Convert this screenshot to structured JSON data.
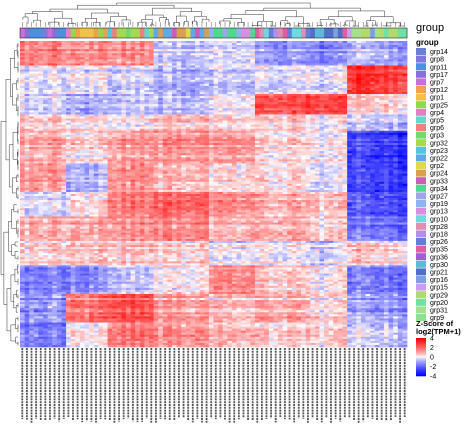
{
  "chart_data": {
    "type": "heatmap",
    "annotation_row_label": "group",
    "legend": {
      "group": {
        "title": "group",
        "entries": [
          {
            "label": "grp14",
            "color": "#6b7cd9"
          },
          {
            "label": "grp8",
            "color": "#7f78e0"
          },
          {
            "label": "grp11",
            "color": "#4f8fe0"
          },
          {
            "label": "grp17",
            "color": "#8a6fdc"
          },
          {
            "label": "grp7",
            "color": "#c96fd9"
          },
          {
            "label": "grp12",
            "color": "#f2a04a"
          },
          {
            "label": "grp1",
            "color": "#f0c24a"
          },
          {
            "label": "grp25",
            "color": "#8fd94e"
          },
          {
            "label": "grp4",
            "color": "#e37fc7"
          },
          {
            "label": "grp5",
            "color": "#5fd9c9"
          },
          {
            "label": "grp6",
            "color": "#f07f7f"
          },
          {
            "label": "grp3",
            "color": "#73d96b"
          },
          {
            "label": "grp32",
            "color": "#a6d94e"
          },
          {
            "label": "grp23",
            "color": "#4fc7e0"
          },
          {
            "label": "grp22",
            "color": "#5fa9e6"
          },
          {
            "label": "grp2",
            "color": "#e0d94f"
          },
          {
            "label": "grp24",
            "color": "#d9a14f"
          },
          {
            "label": "grp33",
            "color": "#c95fb9"
          },
          {
            "label": "grp34",
            "color": "#4fd98f"
          },
          {
            "label": "grp27",
            "color": "#9fa6e8"
          },
          {
            "label": "grp19",
            "color": "#8fb3f0"
          },
          {
            "label": "grp13",
            "color": "#d98fe0"
          },
          {
            "label": "grp10",
            "color": "#6fd9e0"
          },
          {
            "label": "grp28",
            "color": "#e08fb0"
          },
          {
            "label": "grp18",
            "color": "#b38fe8"
          },
          {
            "label": "grp26",
            "color": "#5f7fd9"
          },
          {
            "label": "grp35",
            "color": "#e05fa0"
          },
          {
            "label": "grp36",
            "color": "#9f5fd9"
          },
          {
            "label": "grp30",
            "color": "#5fb9d9"
          },
          {
            "label": "grp21",
            "color": "#4f6fc9"
          },
          {
            "label": "grp16",
            "color": "#7fa0e0"
          },
          {
            "label": "grp15",
            "color": "#c9a0e8"
          },
          {
            "label": "grp29",
            "color": "#b3d96b"
          },
          {
            "label": "grp20",
            "color": "#6fe0a6"
          },
          {
            "label": "grp31",
            "color": "#a6e08f"
          },
          {
            "label": "grp9",
            "color": "#8fe08f"
          }
        ]
      },
      "colorbar": {
        "title_line1": "Z-Score of",
        "title_line2": "log2(TPM+1)",
        "ticks": [
          4,
          2,
          0,
          -2,
          -4
        ],
        "range": [
          -4,
          4
        ],
        "colors": {
          "low": "#0000ff",
          "mid": "#ffffff",
          "high": "#ff0000"
        }
      }
    },
    "dimensions": {
      "rows": 150,
      "columns": 84
    },
    "row_clusters": [
      {
        "rows": 12,
        "pattern": [
          1.6,
          1.6,
          1.4,
          -0.6,
          -0.4,
          -1.2,
          -1.4,
          -0.8
        ]
      },
      {
        "rows": 14,
        "pattern": [
          -0.2,
          0.2,
          -0.4,
          -0.8,
          -0.6,
          -0.3,
          -0.2,
          3.0
        ]
      },
      {
        "rows": 10,
        "pattern": [
          -0.6,
          -1.0,
          -0.8,
          -0.9,
          -0.4,
          2.2,
          2.4,
          0.3
        ]
      },
      {
        "rows": 8,
        "pattern": [
          0.6,
          0.5,
          0.2,
          0.8,
          0.4,
          0.6,
          0.2,
          -0.4
        ]
      },
      {
        "rows": 16,
        "pattern": [
          0.8,
          0.4,
          1.0,
          1.2,
          1.0,
          0.2,
          0.0,
          -2.8
        ]
      },
      {
        "rows": 14,
        "pattern": [
          1.2,
          -0.6,
          1.4,
          0.8,
          0.3,
          0.4,
          -0.2,
          -2.6
        ]
      },
      {
        "rows": 12,
        "pattern": [
          -0.4,
          0.3,
          1.6,
          2.0,
          1.2,
          0.8,
          0.6,
          -2.4
        ]
      },
      {
        "rows": 12,
        "pattern": [
          0.8,
          1.0,
          1.2,
          1.4,
          0.6,
          0.8,
          0.4,
          -1.8
        ]
      },
      {
        "rows": 12,
        "pattern": [
          0.2,
          0.6,
          0.4,
          0.2,
          -0.4,
          -0.2,
          -0.6,
          0.3
        ]
      },
      {
        "rows": 14,
        "pattern": [
          -1.6,
          -1.2,
          -0.6,
          0.2,
          1.4,
          0.6,
          0.2,
          -1.6
        ]
      },
      {
        "rows": 14,
        "pattern": [
          -1.4,
          1.8,
          2.2,
          1.0,
          0.4,
          0.8,
          0.2,
          -1.2
        ]
      },
      {
        "rows": 12,
        "pattern": [
          -1.8,
          0.2,
          1.6,
          1.2,
          0.6,
          0.4,
          0.4,
          -0.6
        ]
      }
    ],
    "column_blocks": [
      10,
      9,
      10,
      12,
      10,
      11,
      9,
      13
    ]
  }
}
